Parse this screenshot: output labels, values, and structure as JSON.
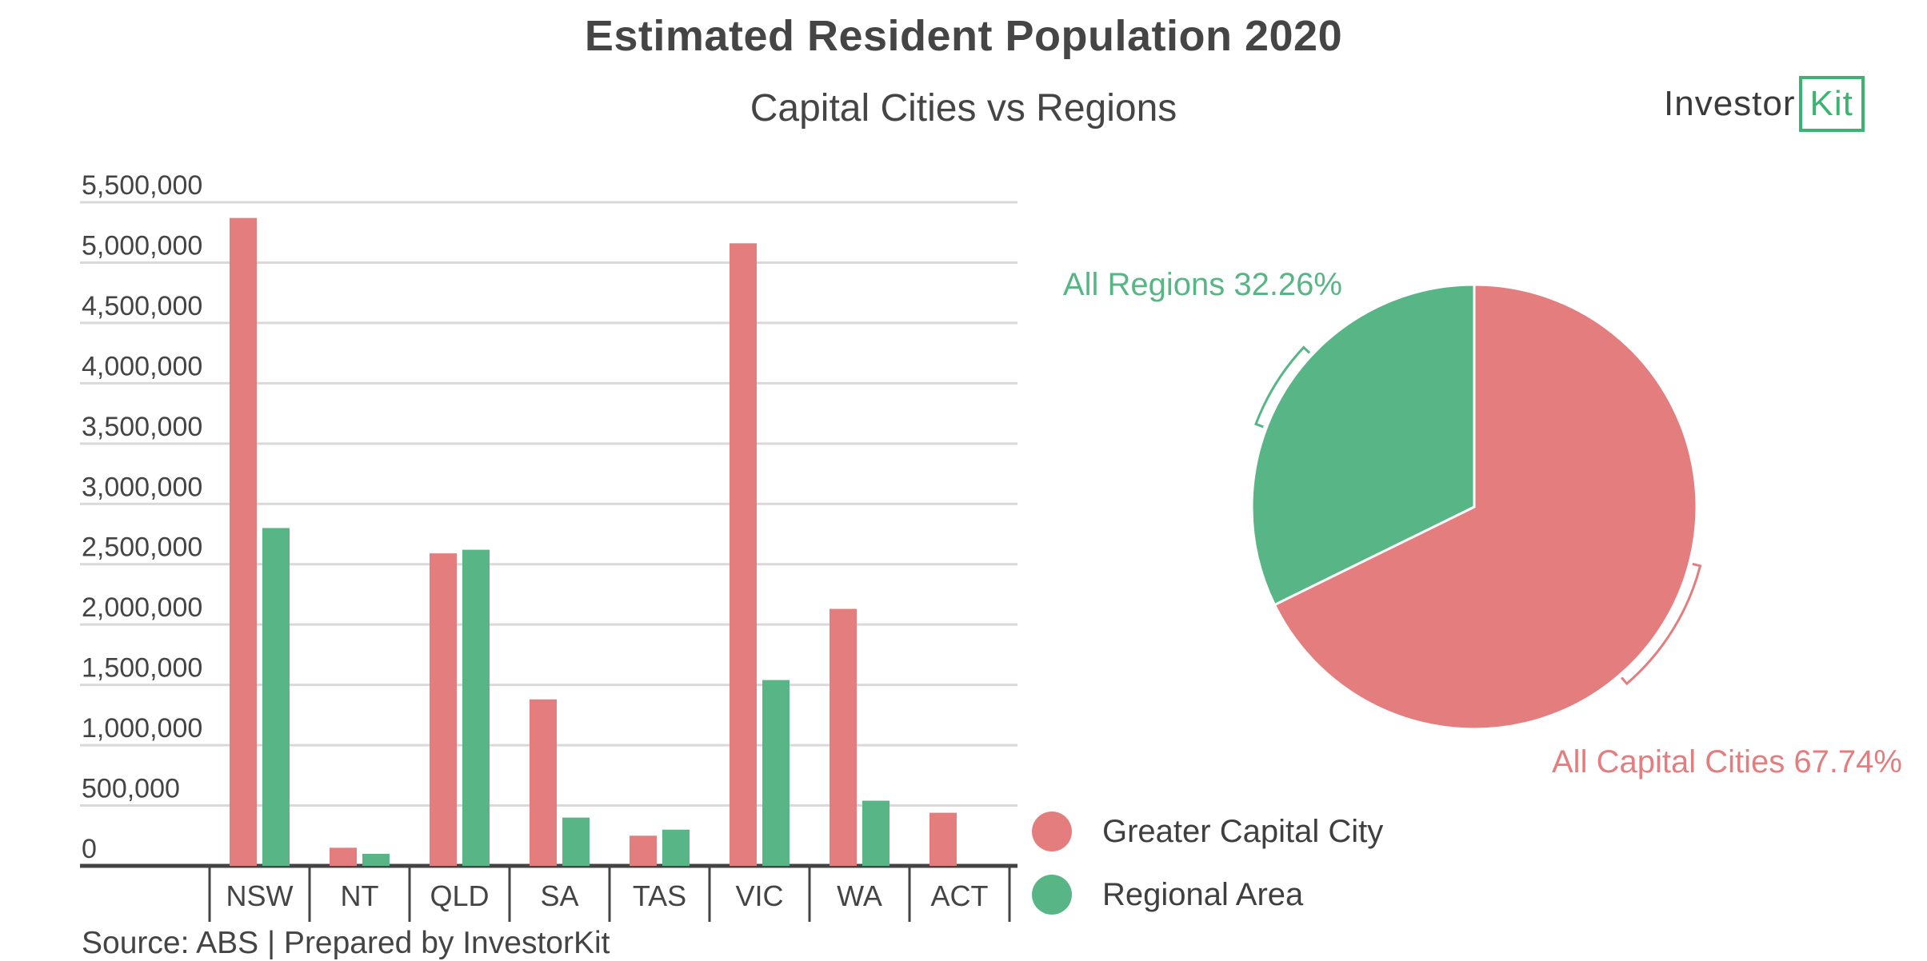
{
  "title": "Estimated Resident Population 2020",
  "subtitle": "Capital Cities vs Regions",
  "logo": {
    "text_main": "Investor",
    "text_box": "Kit"
  },
  "source": "Source: ABS | Prepared by InvestorKit",
  "colors": {
    "capital": "#e47e7e",
    "regional": "#58b586",
    "axis": "#444444",
    "grid": "#d9d9d9"
  },
  "legend": [
    {
      "name": "Greater Capital City",
      "color": "#e47e7e"
    },
    {
      "name": "Regional Area",
      "color": "#58b586"
    }
  ],
  "chart_data": [
    {
      "type": "bar",
      "categories": [
        "NSW",
        "NT",
        "QLD",
        "SA",
        "TAS",
        "VIC",
        "WA",
        "ACT"
      ],
      "series": [
        {
          "name": "Greater Capital City",
          "color": "#e47e7e",
          "values": [
            5370000,
            150000,
            2590000,
            1380000,
            250000,
            5160000,
            2130000,
            440000
          ]
        },
        {
          "name": "Regional Area",
          "color": "#58b586",
          "values": [
            2800000,
            100000,
            2620000,
            400000,
            300000,
            1540000,
            540000,
            0
          ]
        }
      ],
      "ylim": [
        0,
        5500000
      ],
      "yticks": [
        0,
        500000,
        1000000,
        1500000,
        2000000,
        2500000,
        3000000,
        3500000,
        4000000,
        4500000,
        5000000,
        5500000
      ],
      "ytick_labels": [
        "0",
        "500,000",
        "1,000,000",
        "1,500,000",
        "2,000,000",
        "2,500,000",
        "3,000,000",
        "3,500,000",
        "4,000,000",
        "4,500,000",
        "5,000,000",
        "5,500,000"
      ],
      "grid": true
    },
    {
      "type": "pie",
      "slices": [
        {
          "name": "All Capital Cities",
          "value": 67.74,
          "label": "All Capital Cities 67.74%",
          "color": "#e47e7e"
        },
        {
          "name": "All Regions",
          "value": 32.26,
          "label": "All Regions 32.26%",
          "color": "#58b586"
        }
      ]
    }
  ]
}
